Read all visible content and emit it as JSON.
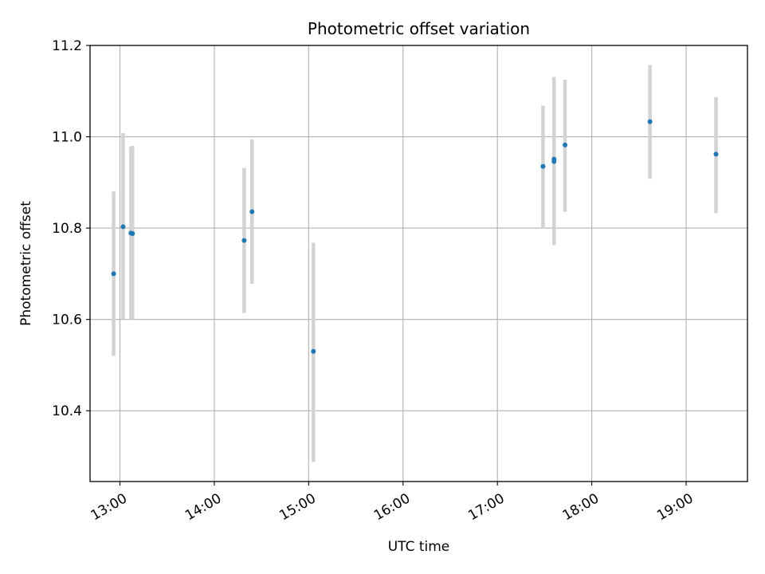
{
  "chart_data": {
    "type": "scatter",
    "title": "Photometric offset variation",
    "xlabel": "UTC time",
    "ylabel": "Photometric offset",
    "x_unit": "hours UTC",
    "xlim": [
      "12:41",
      "19:39"
    ],
    "ylim": [
      10.245,
      11.2
    ],
    "x_ticks": [
      "13:00",
      "14:00",
      "15:00",
      "16:00",
      "17:00",
      "18:00",
      "19:00"
    ],
    "y_ticks": [
      "10.4",
      "10.6",
      "10.8",
      "11.0",
      "11.2"
    ],
    "grid": true,
    "point_color": "#1f77b4",
    "errorbar_color": "#d3d3d3",
    "points": [
      {
        "time": "12:56",
        "y": 10.7,
        "yerr_low": 10.52,
        "yerr_high": 10.88
      },
      {
        "time": "13:02",
        "y": 10.803,
        "yerr_low": 10.6,
        "yerr_high": 11.008
      },
      {
        "time": "13:07",
        "y": 10.789,
        "yerr_low": 10.6,
        "yerr_high": 10.978
      },
      {
        "time": "13:08",
        "y": 10.788,
        "yerr_low": 10.6,
        "yerr_high": 10.98
      },
      {
        "time": "14:19",
        "y": 10.773,
        "yerr_low": 10.614,
        "yerr_high": 10.932
      },
      {
        "time": "14:24",
        "y": 10.836,
        "yerr_low": 10.678,
        "yerr_high": 10.994
      },
      {
        "time": "15:03",
        "y": 10.53,
        "yerr_low": 10.288,
        "yerr_high": 10.768
      },
      {
        "time": "17:29",
        "y": 10.935,
        "yerr_low": 10.8,
        "yerr_high": 11.068
      },
      {
        "time": "17:36",
        "y": 10.946,
        "yerr_low": 10.763,
        "yerr_high": 11.131
      },
      {
        "time": "17:36",
        "y": 10.951,
        "yerr_low": 10.763,
        "yerr_high": 11.131
      },
      {
        "time": "17:43",
        "y": 10.982,
        "yerr_low": 10.836,
        "yerr_high": 11.125
      },
      {
        "time": "18:37",
        "y": 11.033,
        "yerr_low": 10.908,
        "yerr_high": 11.157
      },
      {
        "time": "19:19",
        "y": 10.962,
        "yerr_low": 10.833,
        "yerr_high": 11.087
      }
    ]
  }
}
